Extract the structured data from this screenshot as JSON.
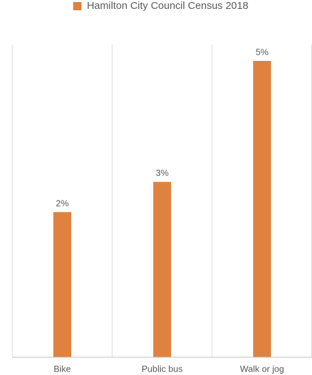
{
  "chart_data": {
    "type": "bar",
    "categories": [
      "Bike",
      "Public bus",
      "Walk or jog"
    ],
    "series": [
      {
        "name": "Hamilton City Council Census 2018",
        "color": "#e0823f",
        "values": [
          2.4,
          2.9,
          4.9
        ],
        "value_labels": [
          "2%",
          "3%",
          "5%"
        ]
      }
    ],
    "grid": true,
    "legend": "top"
  }
}
